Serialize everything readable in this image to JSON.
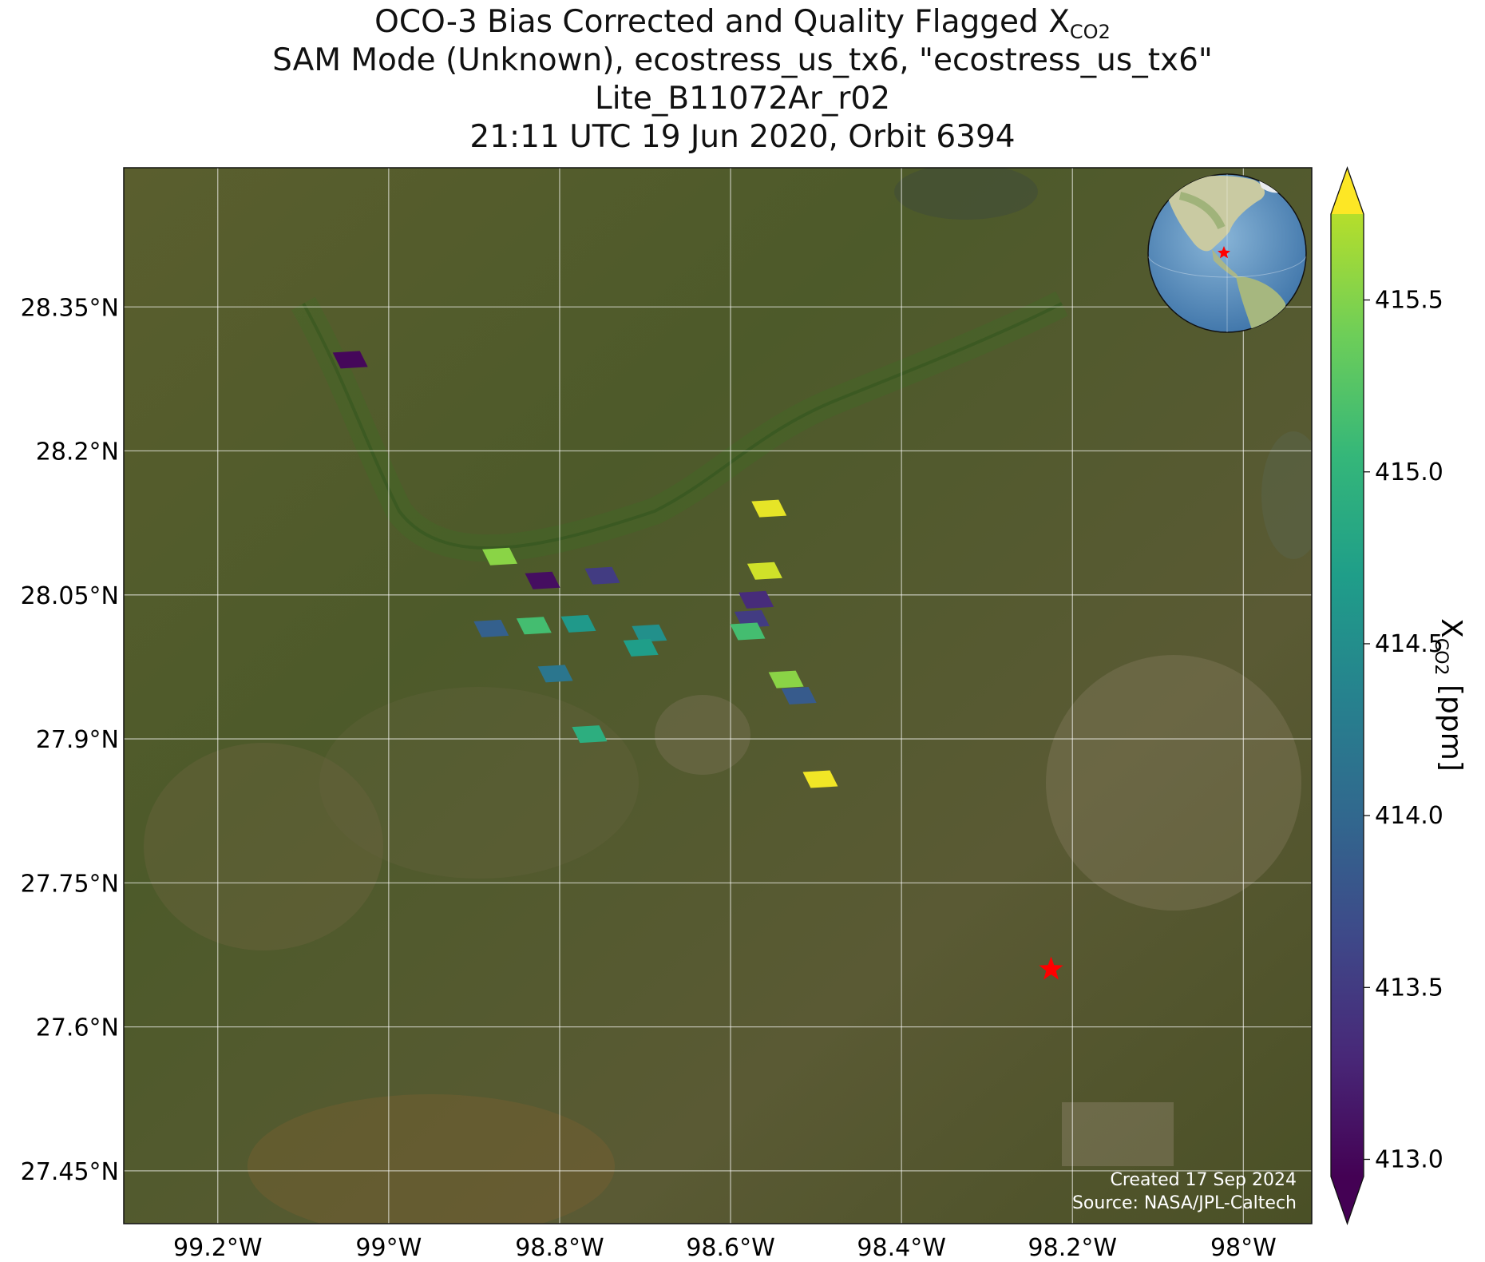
{
  "title": {
    "line1_prefix": "OCO-3 Bias Corrected and Quality Flagged X",
    "line1_sub": "CO2",
    "line2": "SAM Mode (Unknown), ecostress_us_tx6, \"ecostress_us_tx6\"",
    "line3": "Lite_B11072Ar_r02",
    "line4": "21:11 UTC 19 Jun 2020, Orbit 6394"
  },
  "credit": {
    "created": "Created 17 Sep 2024",
    "source": "Source: NASA/JPL-Caltech"
  },
  "colorbar": {
    "label_prefix": "X",
    "label_sub": "CO2",
    "label_suffix": " [ppm]",
    "ticks": [
      "413.0",
      "413.5",
      "414.0",
      "414.5",
      "415.0",
      "415.5"
    ],
    "range": [
      412.95,
      415.75
    ],
    "colormap": "viridis",
    "extend": "both"
  },
  "map": {
    "lon_range": [
      -99.31,
      -97.92
    ],
    "lat_range": [
      27.395,
      28.495
    ],
    "lon_ticks": [
      "99.2°W",
      "99°W",
      "98.8°W",
      "98.6°W",
      "98.4°W",
      "98.2°W",
      "98°W"
    ],
    "lat_ticks": [
      "28.35°N",
      "28.2°N",
      "28.05°N",
      "27.9°N",
      "27.75°N",
      "27.6°N",
      "27.45°N"
    ],
    "grid": true,
    "basemap": "satellite imagery",
    "target_marker": {
      "lon": -98.225,
      "lat": 27.66,
      "color": "#ff0000",
      "icon": "red-star-icon"
    },
    "inset": {
      "type": "globe",
      "marker": "red-star-icon"
    }
  },
  "chart_data": {
    "type": "scatter",
    "x_label": "",
    "y_label": "",
    "soundings": [
      {
        "lon": -99.045,
        "lat": 28.295,
        "xco2": 413.0
      },
      {
        "lon": -98.555,
        "lat": 28.14,
        "xco2": 415.65
      },
      {
        "lon": -98.87,
        "lat": 28.09,
        "xco2": 415.25
      },
      {
        "lon": -98.56,
        "lat": 28.075,
        "xco2": 415.55
      },
      {
        "lon": -98.82,
        "lat": 28.065,
        "xco2": 413.05
      },
      {
        "lon": -98.75,
        "lat": 28.07,
        "xco2": 413.45
      },
      {
        "lon": -98.57,
        "lat": 28.045,
        "xco2": 413.3
      },
      {
        "lon": -98.575,
        "lat": 28.025,
        "xco2": 413.45
      },
      {
        "lon": -98.88,
        "lat": 28.015,
        "xco2": 413.8
      },
      {
        "lon": -98.83,
        "lat": 28.018,
        "xco2": 414.9
      },
      {
        "lon": -98.778,
        "lat": 28.02,
        "xco2": 414.45
      },
      {
        "lon": -98.695,
        "lat": 28.01,
        "xco2": 414.35
      },
      {
        "lon": -98.58,
        "lat": 28.012,
        "xco2": 414.9
      },
      {
        "lon": -98.705,
        "lat": 27.995,
        "xco2": 414.5
      },
      {
        "lon": -98.805,
        "lat": 27.968,
        "xco2": 414.05
      },
      {
        "lon": -98.535,
        "lat": 27.962,
        "xco2": 415.25
      },
      {
        "lon": -98.52,
        "lat": 27.945,
        "xco2": 413.75
      },
      {
        "lon": -98.765,
        "lat": 27.905,
        "xco2": 414.7
      },
      {
        "lon": -98.495,
        "lat": 27.858,
        "xco2": 415.7
      }
    ]
  }
}
